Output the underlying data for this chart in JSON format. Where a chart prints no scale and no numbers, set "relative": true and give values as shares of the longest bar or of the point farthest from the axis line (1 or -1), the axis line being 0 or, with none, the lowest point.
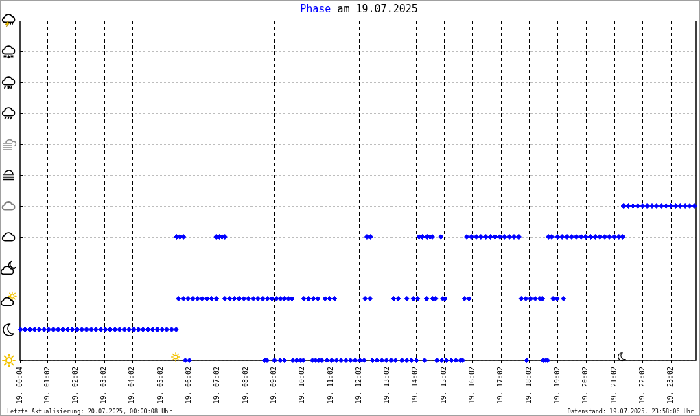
{
  "chart_data": {
    "type": "scatter",
    "title": "am 19.07.2025",
    "annotations": [
      "Letzte Aktualisierung: 20.07.2025, 00:00:08 Uhr",
      "Datenstand: 19.07.2025, 23:58:06 Uhr"
    ],
    "xlim": [
      "2025-07-19T00:04",
      "2025-07-19T23:55"
    ],
    "xticks": [
      {
        "value": "2025-07-19T00:04",
        "label": "19. 00:04"
      },
      {
        "value": "2025-07-19T01:02",
        "label": "19. 01:02"
      },
      {
        "value": "2025-07-19T02:02",
        "label": "19. 02:02"
      },
      {
        "value": "2025-07-19T03:02",
        "label": "19. 03:02"
      },
      {
        "value": "2025-07-19T04:02",
        "label": "19. 04:02"
      },
      {
        "value": "2025-07-19T05:02",
        "label": "19. 05:02"
      },
      {
        "value": "2025-07-19T06:02",
        "label": "19. 06:02"
      },
      {
        "value": "2025-07-19T07:02",
        "label": "19. 07:02"
      },
      {
        "value": "2025-07-19T08:02",
        "label": "19. 08:02"
      },
      {
        "value": "2025-07-19T09:02",
        "label": "19. 09:02"
      },
      {
        "value": "2025-07-19T10:02",
        "label": "19. 10:02"
      },
      {
        "value": "2025-07-19T11:02",
        "label": "19. 11:02"
      },
      {
        "value": "2025-07-19T12:02",
        "label": "19. 12:02"
      },
      {
        "value": "2025-07-19T13:02",
        "label": "19. 13:02"
      },
      {
        "value": "2025-07-19T14:02",
        "label": "19. 14:02"
      },
      {
        "value": "2025-07-19T15:02",
        "label": "19. 15:02"
      },
      {
        "value": "2025-07-19T16:02",
        "label": "19. 16:02"
      },
      {
        "value": "2025-07-19T17:02",
        "label": "19. 17:02"
      },
      {
        "value": "2025-07-19T18:02",
        "label": "19. 18:02"
      },
      {
        "value": "2025-07-19T19:02",
        "label": "19. 19:02"
      },
      {
        "value": "2025-07-19T20:02",
        "label": "19. 20:02"
      },
      {
        "value": "2025-07-19T21:02",
        "label": "19. 21:02"
      },
      {
        "value": "2025-07-19T22:02",
        "label": "19. 22:02"
      },
      {
        "value": "2025-07-19T23:02",
        "label": "19. 23:02"
      }
    ],
    "relative": true,
    "grid": true,
    "marker": "diamond",
    "series": [
      {
        "name": "Phase",
        "color": "#0000ff",
        "x": [
          "2025-07-19T00:05",
          "2025-07-19T00:15",
          "2025-07-19T00:25",
          "2025-07-19T00:35",
          "2025-07-19T00:45",
          "2025-07-19T00:55",
          "2025-07-19T01:05",
          "2025-07-19T01:15",
          "2025-07-19T01:25",
          "2025-07-19T01:35",
          "2025-07-19T01:45",
          "2025-07-19T01:55",
          "2025-07-19T02:05",
          "2025-07-19T02:15",
          "2025-07-19T02:25",
          "2025-07-19T02:35",
          "2025-07-19T02:45",
          "2025-07-19T02:55",
          "2025-07-19T03:05",
          "2025-07-19T03:15",
          "2025-07-19T03:25",
          "2025-07-19T03:35",
          "2025-07-19T03:45",
          "2025-07-19T03:55",
          "2025-07-19T04:05",
          "2025-07-19T04:15",
          "2025-07-19T04:25",
          "2025-07-19T04:35",
          "2025-07-19T04:45",
          "2025-07-19T04:55",
          "2025-07-19T05:05",
          "2025-07-19T05:15",
          "2025-07-19T05:25",
          "2025-07-19T05:35",
          "2025-07-19T05:54",
          "2025-07-19T06:03",
          "2025-07-19T08:42",
          "2025-07-19T08:47",
          "2025-07-19T09:03",
          "2025-07-19T09:15",
          "2025-07-19T09:24",
          "2025-07-19T09:42",
          "2025-07-19T09:50",
          "2025-07-19T09:58",
          "2025-07-19T10:04",
          "2025-07-19T10:23",
          "2025-07-19T10:30",
          "2025-07-19T10:37",
          "2025-07-19T10:43",
          "2025-07-19T10:54",
          "2025-07-19T11:04",
          "2025-07-19T11:14",
          "2025-07-19T11:24",
          "2025-07-19T11:34",
          "2025-07-19T11:44",
          "2025-07-19T11:54",
          "2025-07-19T12:04",
          "2025-07-19T12:13",
          "2025-07-19T12:30",
          "2025-07-19T12:40",
          "2025-07-19T12:50",
          "2025-07-19T13:00",
          "2025-07-19T13:10",
          "2025-07-19T13:19",
          "2025-07-19T13:33",
          "2025-07-19T13:43",
          "2025-07-19T13:53",
          "2025-07-19T14:03",
          "2025-07-19T14:21",
          "2025-07-19T14:47",
          "2025-07-19T14:57",
          "2025-07-19T15:07",
          "2025-07-19T15:17",
          "2025-07-19T15:27",
          "2025-07-19T15:37",
          "2025-07-19T15:41",
          "2025-07-19T17:57",
          "2025-07-19T18:32",
          "2025-07-19T18:37",
          "2025-07-19T18:41",
          "2025-07-19T05:40",
          "2025-07-19T05:50",
          "2025-07-19T06:00",
          "2025-07-19T06:10",
          "2025-07-19T06:20",
          "2025-07-19T06:30",
          "2025-07-19T06:40",
          "2025-07-19T06:50",
          "2025-07-19T07:00",
          "2025-07-19T07:18",
          "2025-07-19T07:28",
          "2025-07-19T07:38",
          "2025-07-19T07:48",
          "2025-07-19T07:58",
          "2025-07-19T08:08",
          "2025-07-19T08:18",
          "2025-07-19T08:28",
          "2025-07-19T08:38",
          "2025-07-19T08:48",
          "2025-07-19T08:58",
          "2025-07-19T09:07",
          "2025-07-19T09:16",
          "2025-07-19T09:24",
          "2025-07-19T09:32",
          "2025-07-19T09:40",
          "2025-07-19T10:05",
          "2025-07-19T10:15",
          "2025-07-19T10:25",
          "2025-07-19T10:35",
          "2025-07-19T10:50",
          "2025-07-19T11:00",
          "2025-07-19T11:10",
          "2025-07-19T12:15",
          "2025-07-19T12:25",
          "2025-07-19T13:15",
          "2025-07-19T13:25",
          "2025-07-19T13:43",
          "2025-07-19T13:57",
          "2025-07-19T14:06",
          "2025-07-19T14:25",
          "2025-07-19T14:38",
          "2025-07-19T14:44",
          "2025-07-19T14:59",
          "2025-07-19T15:04",
          "2025-07-19T15:45",
          "2025-07-19T15:55",
          "2025-07-19T17:45",
          "2025-07-19T17:55",
          "2025-07-19T18:05",
          "2025-07-19T18:15",
          "2025-07-19T18:25",
          "2025-07-19T18:30",
          "2025-07-19T18:53",
          "2025-07-19T19:01",
          "2025-07-19T19:15",
          "2025-07-19T05:36",
          "2025-07-19T05:43",
          "2025-07-19T05:50",
          "2025-07-19T07:00",
          "2025-07-19T07:06",
          "2025-07-19T07:12",
          "2025-07-19T07:18",
          "2025-07-19T12:19",
          "2025-07-19T12:26",
          "2025-07-19T14:09",
          "2025-07-19T14:16",
          "2025-07-19T14:26",
          "2025-07-19T14:32",
          "2025-07-19T14:37",
          "2025-07-19T14:55",
          "2025-07-19T15:50",
          "2025-07-19T16:00",
          "2025-07-19T16:10",
          "2025-07-19T16:20",
          "2025-07-19T16:30",
          "2025-07-19T16:40",
          "2025-07-19T16:50",
          "2025-07-19T17:00",
          "2025-07-19T17:10",
          "2025-07-19T17:20",
          "2025-07-19T17:30",
          "2025-07-19T17:40",
          "2025-07-19T18:43",
          "2025-07-19T18:50",
          "2025-07-19T19:02",
          "2025-07-19T19:12",
          "2025-07-19T19:22",
          "2025-07-19T19:32",
          "2025-07-19T19:42",
          "2025-07-19T19:52",
          "2025-07-19T20:02",
          "2025-07-19T20:12",
          "2025-07-19T20:22",
          "2025-07-19T20:32",
          "2025-07-19T20:42",
          "2025-07-19T20:52",
          "2025-07-19T21:02",
          "2025-07-19T21:12",
          "2025-07-19T21:20",
          "2025-07-19T21:22",
          "2025-07-19T21:32",
          "2025-07-19T21:42",
          "2025-07-19T21:52",
          "2025-07-19T22:02",
          "2025-07-19T22:12",
          "2025-07-19T22:22",
          "2025-07-19T22:32",
          "2025-07-19T22:42",
          "2025-07-19T22:52",
          "2025-07-19T23:02",
          "2025-07-19T23:12",
          "2025-07-19T23:22",
          "2025-07-19T23:32",
          "2025-07-19T23:42",
          "2025-07-19T23:52"
        ],
        "values": [
          0.2,
          0.2,
          0.2,
          0.2,
          0.2,
          0.2,
          0.2,
          0.2,
          0.2,
          0.2,
          0.2,
          0.2,
          0.2,
          0.2,
          0.2,
          0.2,
          0.2,
          0.2,
          0.2,
          0.2,
          0.2,
          0.2,
          0.2,
          0.2,
          0.2,
          0.2,
          0.2,
          0.2,
          0.2,
          0.2,
          0.2,
          0.2,
          0.2,
          0.2,
          0,
          0,
          0,
          0,
          0,
          0,
          0,
          0,
          0,
          0,
          0,
          0,
          0,
          0,
          0,
          0,
          0,
          0,
          0,
          0,
          0,
          0,
          0,
          0,
          0,
          0,
          0,
          0,
          0,
          0,
          0,
          0,
          0,
          0,
          0,
          0,
          0,
          0,
          0,
          0,
          0,
          0,
          0,
          0,
          0,
          0,
          0.4,
          0.4,
          0.4,
          0.4,
          0.4,
          0.4,
          0.4,
          0.4,
          0.4,
          0.4,
          0.4,
          0.4,
          0.4,
          0.4,
          0.4,
          0.4,
          0.4,
          0.4,
          0.4,
          0.4,
          0.4,
          0.4,
          0.4,
          0.4,
          0.4,
          0.4,
          0.4,
          0.4,
          0.4,
          0.4,
          0.4,
          0.4,
          0.4,
          0.4,
          0.4,
          0.4,
          0.4,
          0.4,
          0.4,
          0.4,
          0.4,
          0.4,
          0.4,
          0.4,
          0.4,
          0.4,
          0.4,
          0.4,
          0.4,
          0.4,
          0.4,
          0.4,
          0.4,
          0.4,
          0.4,
          0.8,
          0.8,
          0.8,
          0.8,
          0.8,
          0.8,
          0.8,
          0.8,
          0.8,
          0.8,
          0.8,
          0.8,
          0.8,
          0.8,
          0.8,
          0.8,
          0.8,
          0.8,
          0.8,
          0.8,
          0.8,
          0.8,
          0.8,
          0.8,
          0.8,
          0.8,
          0.8,
          0.8,
          0.8,
          0.8,
          0.8,
          0.8,
          0.8,
          0.8,
          0.8,
          0.8,
          0.8,
          0.8,
          0.8,
          0.8,
          0.8,
          0.8,
          0.8,
          0.8,
          1,
          1,
          1,
          1,
          1,
          1,
          1,
          1,
          1,
          1,
          1,
          1,
          1,
          1,
          1,
          1
        ]
      }
    ]
  }
}
